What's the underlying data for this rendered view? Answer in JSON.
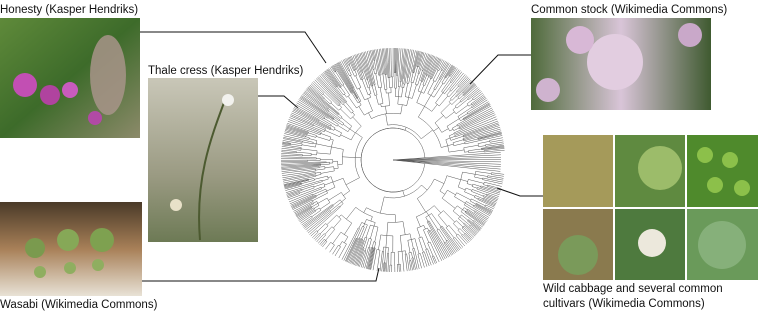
{
  "captions": {
    "honesty": "Honesty (Kasper Hendriks)",
    "thale_cress": "Thale cress (Kasper Hendriks)",
    "common_stock": "Common stock (Wikimedia Commons)",
    "wasabi": "Wasabi (Wikimedia Commons)",
    "wild_cabbage": [
      "Wild cabbage and several common",
      "cultivars (Wikimedia Commons)"
    ]
  }
}
